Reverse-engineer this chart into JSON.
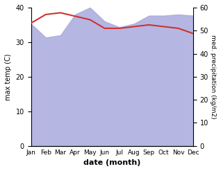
{
  "months": [
    "Jan",
    "Feb",
    "Mar",
    "Apr",
    "May",
    "Jun",
    "Jul",
    "Aug",
    "Sep",
    "Oct",
    "Nov",
    "Dec"
  ],
  "temp_max": [
    35.5,
    38.0,
    38.5,
    37.5,
    36.5,
    34.0,
    34.0,
    34.5,
    35.0,
    34.5,
    34.0,
    32.5
  ],
  "precipitation": [
    53.0,
    47.0,
    48.0,
    57.0,
    60.0,
    54.0,
    51.5,
    53.0,
    56.5,
    56.5,
    57.0,
    56.5
  ],
  "temp_color": "#cc3333",
  "precip_fill_color": "#aaaadd",
  "temp_ylim": [
    0,
    40
  ],
  "precip_ylim": [
    0,
    60
  ],
  "temp_yticks": [
    0,
    10,
    20,
    30,
    40
  ],
  "precip_yticks": [
    0,
    10,
    20,
    30,
    40,
    50,
    60
  ],
  "ylabel_left": "max temp (C)",
  "ylabel_right": "med. precipitation (kg/m2)",
  "xlabel": "date (month)",
  "background_color": "#ffffff"
}
